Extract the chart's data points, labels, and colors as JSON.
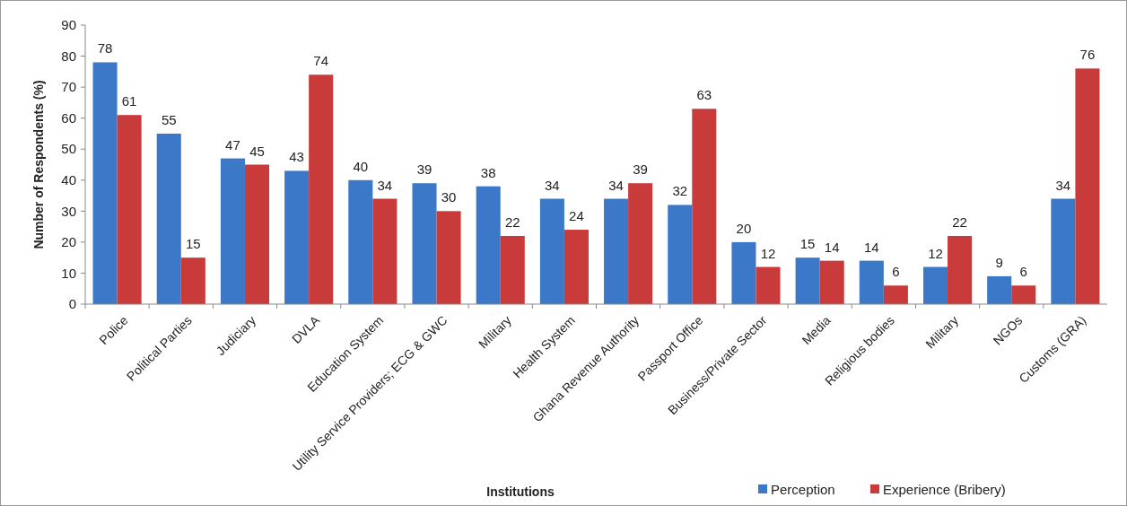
{
  "chart_data": {
    "type": "bar",
    "xlabel": "Institutions",
    "ylabel": "Number of Respondents (%)",
    "categories": [
      "Police",
      "Political Parties",
      "Judiciary",
      "DVLA",
      "Education System",
      "Utility Service Providers; ECG & GWC",
      "Military",
      "Health System",
      "Ghana Revenue Authority",
      "Passport Office",
      "Business/Private Sector",
      "Media",
      "Religious bodies",
      "Military",
      "NGOs",
      "Customs (GRA)"
    ],
    "series": [
      {
        "name": "Perception",
        "color": "#3b78c8",
        "values": [
          78,
          55,
          47,
          43,
          40,
          39,
          38,
          34,
          34,
          32,
          20,
          15,
          14,
          12,
          9,
          34
        ]
      },
      {
        "name": "Experience (Bribery)",
        "color": "#c93a3a",
        "values": [
          61,
          15,
          45,
          74,
          34,
          30,
          22,
          24,
          39,
          63,
          12,
          14,
          6,
          22,
          6,
          76
        ]
      }
    ],
    "ylim": [
      0,
      90
    ],
    "yticks": [
      0,
      10,
      20,
      30,
      40,
      50,
      60,
      70,
      80,
      90
    ],
    "data_labels": true,
    "legend": "bottom",
    "grid": false
  }
}
